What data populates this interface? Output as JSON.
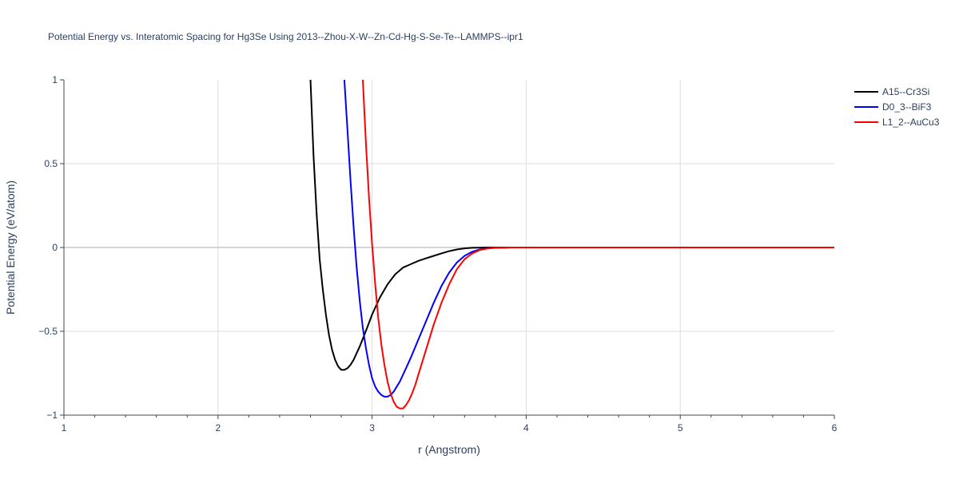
{
  "chart_data": {
    "type": "line",
    "title": "Potential Energy vs. Interatomic Spacing for Hg3Se Using 2013--Zhou-X-W--Zn-Cd-Hg-S-Se-Te--LAMMPS--ipr1",
    "xlabel": "r (Angstrom)",
    "ylabel": "Potential Energy (eV/atom)",
    "xlim": [
      1,
      6
    ],
    "ylim": [
      -1,
      1
    ],
    "x_ticks": [
      1,
      2,
      3,
      4,
      5,
      6
    ],
    "x_tick_labels": [
      "1",
      "2",
      "3",
      "4",
      "5",
      "6"
    ],
    "y_ticks": [
      -1,
      -0.5,
      0,
      0.5,
      1
    ],
    "y_tick_labels": [
      "−1",
      "−0.5",
      "0",
      "0.5",
      "1"
    ],
    "grid": true,
    "legend_position": "top-right",
    "series": [
      {
        "name": "A15--Cr3Si",
        "color": "#000000",
        "x": [
          2.6,
          2.62,
          2.64,
          2.66,
          2.68,
          2.7,
          2.72,
          2.74,
          2.76,
          2.78,
          2.8,
          2.82,
          2.84,
          2.86,
          2.88,
          2.9,
          2.92,
          2.95,
          2.98,
          3.0,
          3.05,
          3.1,
          3.15,
          3.2,
          3.25,
          3.3,
          3.35,
          3.4,
          3.45,
          3.5,
          3.55,
          3.6,
          3.65,
          3.7,
          3.75,
          3.8,
          3.9,
          4.0,
          4.5,
          5.0,
          5.5,
          6.0
        ],
        "y": [
          1.0,
          0.55,
          0.2,
          -0.07,
          -0.25,
          -0.4,
          -0.52,
          -0.61,
          -0.67,
          -0.71,
          -0.73,
          -0.73,
          -0.72,
          -0.7,
          -0.67,
          -0.63,
          -0.59,
          -0.52,
          -0.45,
          -0.4,
          -0.3,
          -0.22,
          -0.16,
          -0.12,
          -0.1,
          -0.08,
          -0.065,
          -0.05,
          -0.035,
          -0.022,
          -0.012,
          -0.005,
          -0.002,
          -0.001,
          0.0,
          0.0,
          0.0,
          0.0,
          0.0,
          0.0,
          0.0,
          0.0
        ]
      },
      {
        "name": "D0_3--BiF3",
        "color": "#0000ff",
        "x": [
          2.82,
          2.84,
          2.86,
          2.88,
          2.9,
          2.92,
          2.94,
          2.96,
          2.98,
          3.0,
          3.02,
          3.04,
          3.06,
          3.08,
          3.1,
          3.12,
          3.14,
          3.16,
          3.18,
          3.2,
          3.25,
          3.3,
          3.35,
          3.4,
          3.45,
          3.5,
          3.55,
          3.6,
          3.65,
          3.7,
          3.75,
          3.8,
          3.85,
          3.9,
          4.0,
          4.5,
          5.0,
          5.5,
          6.0
        ],
        "y": [
          1.0,
          0.7,
          0.4,
          0.12,
          -0.12,
          -0.32,
          -0.48,
          -0.6,
          -0.7,
          -0.78,
          -0.83,
          -0.86,
          -0.88,
          -0.89,
          -0.89,
          -0.88,
          -0.86,
          -0.83,
          -0.8,
          -0.76,
          -0.66,
          -0.55,
          -0.44,
          -0.33,
          -0.23,
          -0.15,
          -0.09,
          -0.05,
          -0.025,
          -0.012,
          -0.005,
          -0.002,
          -0.001,
          0.0,
          0.0,
          0.0,
          0.0,
          0.0,
          0.0
        ]
      },
      {
        "name": "L1_2--AuCu3",
        "color": "#ff0000",
        "x": [
          2.94,
          2.96,
          2.98,
          3.0,
          3.02,
          3.04,
          3.06,
          3.08,
          3.1,
          3.12,
          3.14,
          3.16,
          3.18,
          3.2,
          3.22,
          3.24,
          3.26,
          3.28,
          3.3,
          3.35,
          3.4,
          3.45,
          3.5,
          3.55,
          3.6,
          3.65,
          3.7,
          3.75,
          3.8,
          3.85,
          3.9,
          4.0,
          4.5,
          5.0,
          5.5,
          6.0
        ],
        "y": [
          1.0,
          0.62,
          0.3,
          0.02,
          -0.22,
          -0.42,
          -0.58,
          -0.7,
          -0.8,
          -0.87,
          -0.92,
          -0.95,
          -0.96,
          -0.96,
          -0.94,
          -0.91,
          -0.87,
          -0.82,
          -0.76,
          -0.61,
          -0.46,
          -0.33,
          -0.22,
          -0.13,
          -0.07,
          -0.035,
          -0.015,
          -0.006,
          -0.002,
          -0.001,
          0.0,
          0.0,
          0.0,
          0.0,
          0.0,
          0.0
        ]
      }
    ]
  }
}
